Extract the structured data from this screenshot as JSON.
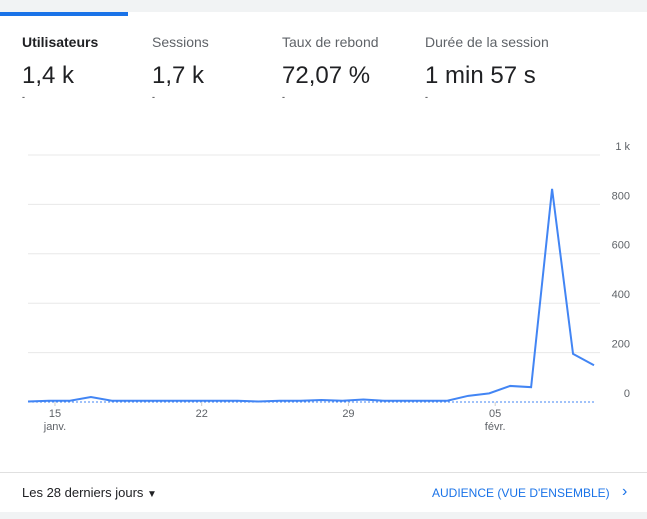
{
  "tabs": [
    {
      "label": "Utilisateurs",
      "value": "1,4 k",
      "change": "-"
    },
    {
      "label": "Sessions",
      "value": "1,7 k",
      "change": "-"
    },
    {
      "label": "Taux de rebond",
      "value": "72,07 %",
      "change": "-"
    },
    {
      "label": "Durée de la session",
      "value": "1 min 57 s",
      "change": "-"
    }
  ],
  "chart_data": {
    "type": "line",
    "categories": [
      null,
      "15 janv.",
      null,
      null,
      null,
      null,
      null,
      null,
      "22",
      null,
      null,
      null,
      null,
      null,
      null,
      "29",
      null,
      null,
      null,
      null,
      null,
      null,
      "05 févr.",
      null,
      null,
      null,
      null,
      null
    ],
    "series": [
      {
        "name": "Utilisateurs",
        "color": "#4285f4",
        "values": [
          2,
          5,
          5,
          20,
          5,
          5,
          5,
          5,
          5,
          5,
          5,
          2,
          5,
          5,
          8,
          5,
          10,
          5,
          5,
          5,
          5,
          25,
          35,
          65,
          60,
          863,
          195,
          149
        ]
      }
    ],
    "ylim": [
      0,
      1000
    ],
    "yticks": [
      0,
      200,
      400,
      600,
      800,
      {
        "value": 1000,
        "label": "1 k"
      }
    ],
    "grid": true
  },
  "footer": {
    "range": "Les 28 derniers jours",
    "link": "AUDIENCE (VUE D'ENSEMBLE)"
  }
}
